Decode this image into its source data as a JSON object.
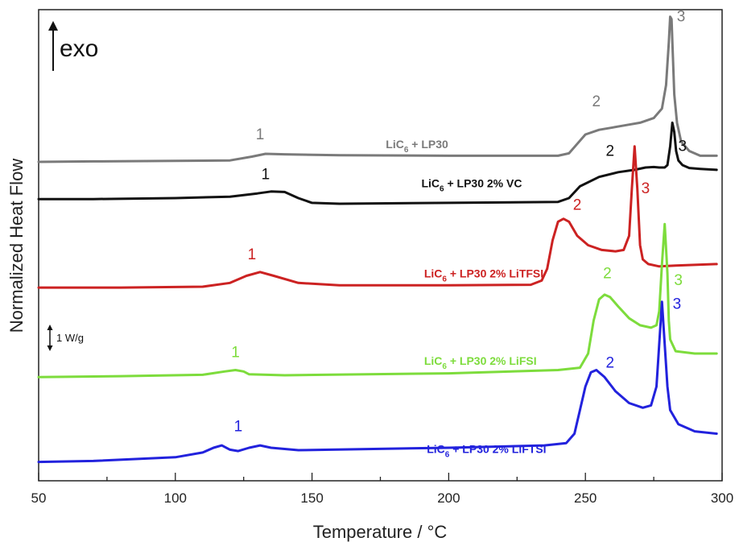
{
  "chart_data": {
    "type": "line",
    "xlabel": "Temperature / °C",
    "ylabel": "Normalized Heat Flow",
    "xlim": [
      50,
      300
    ],
    "xticks": [
      50,
      100,
      150,
      200,
      250,
      300
    ],
    "ylim": [
      0,
      1
    ],
    "y_ticks_labeled": false,
    "grid": false,
    "annotations": {
      "exo": "exo",
      "scale_bar": "1 W/g"
    },
    "series": [
      {
        "name": "LiC6 + LP30",
        "label_main": "LiC",
        "label_sub": "6",
        "label_rest": " + LP30",
        "color": "#7a7a7a",
        "x": [
          50,
          70,
          100,
          120,
          128,
          133,
          140,
          160,
          200,
          230,
          240,
          244,
          247,
          250,
          255,
          260,
          265,
          270,
          275,
          278,
          279.5,
          280.5,
          281,
          281.5,
          282,
          282.5,
          283.5,
          285,
          288,
          292,
          298
        ],
        "y": [
          0.677,
          0.678,
          0.679,
          0.68,
          0.688,
          0.694,
          0.693,
          0.691,
          0.69,
          0.69,
          0.69,
          0.695,
          0.715,
          0.735,
          0.745,
          0.75,
          0.755,
          0.76,
          0.77,
          0.79,
          0.84,
          0.93,
          0.985,
          0.98,
          0.9,
          0.82,
          0.76,
          0.72,
          0.7,
          0.69,
          0.69
        ],
        "peak_labels": [
          {
            "text": "1",
            "x": 131,
            "y": 0.725
          },
          {
            "text": "2",
            "x": 254,
            "y": 0.795
          },
          {
            "text": "3",
            "x": 285,
            "y": 0.975
          }
        ]
      },
      {
        "name": "LiC6 + LP30 2% VC",
        "label_main": "LiC",
        "label_sub": "6",
        "label_rest": " + LP30 2% VC",
        "color": "#111111",
        "x": [
          50,
          70,
          100,
          120,
          130,
          135,
          140,
          145,
          150,
          160,
          200,
          240,
          244,
          248,
          255,
          262,
          268,
          272,
          275,
          277,
          279,
          280,
          281,
          281.8,
          282.5,
          283.2,
          284,
          285.5,
          288,
          292,
          298
        ],
        "y": [
          0.598,
          0.598,
          0.6,
          0.603,
          0.61,
          0.614,
          0.613,
          0.6,
          0.59,
          0.588,
          0.59,
          0.592,
          0.6,
          0.625,
          0.645,
          0.655,
          0.66,
          0.665,
          0.666,
          0.665,
          0.665,
          0.67,
          0.71,
          0.76,
          0.74,
          0.7,
          0.68,
          0.67,
          0.664,
          0.662,
          0.66
        ],
        "peak_labels": [
          {
            "text": "1",
            "x": 133,
            "y": 0.64
          },
          {
            "text": "2",
            "x": 259,
            "y": 0.69
          },
          {
            "text": "3",
            "x": 285.5,
            "y": 0.7
          }
        ]
      },
      {
        "name": "LiC6 + LP30 2% LiTFSI",
        "label_main": "LiC",
        "label_sub": "6",
        "label_rest": " + LP30 2% LiTFSI",
        "color": "#cc2222",
        "x": [
          50,
          80,
          110,
          120,
          126,
          131,
          136,
          145,
          160,
          200,
          230,
          234,
          236,
          238,
          240,
          242,
          244,
          247,
          251,
          256,
          261,
          264,
          266,
          267,
          268,
          269,
          270,
          271,
          273,
          277,
          283,
          298
        ],
        "y": [
          0.41,
          0.41,
          0.412,
          0.42,
          0.435,
          0.443,
          0.435,
          0.42,
          0.415,
          0.415,
          0.416,
          0.425,
          0.45,
          0.51,
          0.55,
          0.556,
          0.55,
          0.52,
          0.5,
          0.49,
          0.487,
          0.49,
          0.52,
          0.62,
          0.71,
          0.62,
          0.5,
          0.47,
          0.46,
          0.455,
          0.457,
          0.46
        ],
        "peak_labels": [
          {
            "text": "1",
            "x": 128,
            "y": 0.47
          },
          {
            "text": "2",
            "x": 247,
            "y": 0.575
          },
          {
            "text": "3",
            "x": 272,
            "y": 0.61
          }
        ]
      },
      {
        "name": "LiC6 + LP30 2% LiFSI",
        "label_main": "LiC",
        "label_sub": "6",
        "label_rest": " + LP30 2% LiFSI",
        "color": "#7ddc3c",
        "x": [
          50,
          80,
          110,
          118,
          122,
          125,
          127,
          140,
          200,
          240,
          248,
          251,
          253,
          255,
          257,
          259,
          262,
          266,
          270,
          274,
          276,
          277,
          278,
          279,
          280,
          280.5,
          281,
          283,
          290,
          298
        ],
        "y": [
          0.22,
          0.222,
          0.225,
          0.232,
          0.235,
          0.232,
          0.226,
          0.224,
          0.228,
          0.235,
          0.24,
          0.27,
          0.34,
          0.385,
          0.395,
          0.39,
          0.37,
          0.345,
          0.33,
          0.325,
          0.33,
          0.36,
          0.46,
          0.545,
          0.44,
          0.34,
          0.3,
          0.275,
          0.27,
          0.27
        ],
        "peak_labels": [
          {
            "text": "1",
            "x": 122,
            "y": 0.262
          },
          {
            "text": "2",
            "x": 258,
            "y": 0.43
          },
          {
            "text": "3",
            "x": 284,
            "y": 0.415
          }
        ]
      },
      {
        "name": "LiC6 + LP30 2% LiFTSI",
        "label_main": "LiC",
        "label_sub": "6",
        "label_rest": " + LP30 2% LiFTSI",
        "color": "#2222dd",
        "x": [
          50,
          70,
          100,
          110,
          114,
          117,
          120,
          123,
          127,
          131,
          135,
          145,
          200,
          235,
          243,
          246,
          248,
          250,
          252,
          254,
          257,
          261,
          266,
          271,
          274,
          276,
          277,
          278,
          279,
          280,
          281,
          284,
          290,
          298
        ],
        "y": [
          0.04,
          0.042,
          0.05,
          0.06,
          0.07,
          0.075,
          0.066,
          0.063,
          0.07,
          0.075,
          0.07,
          0.065,
          0.07,
          0.075,
          0.08,
          0.1,
          0.15,
          0.2,
          0.23,
          0.235,
          0.22,
          0.19,
          0.165,
          0.155,
          0.16,
          0.2,
          0.29,
          0.38,
          0.29,
          0.2,
          0.15,
          0.12,
          0.105,
          0.1
        ],
        "peak_labels": [
          {
            "text": "1",
            "x": 123,
            "y": 0.105
          },
          {
            "text": "2",
            "x": 259,
            "y": 0.24
          },
          {
            "text": "3",
            "x": 283.5,
            "y": 0.365
          }
        ]
      }
    ],
    "series_label_positions": [
      {
        "x": 177,
        "y": 0.706
      },
      {
        "x": 190,
        "y": 0.623
      },
      {
        "x": 191,
        "y": 0.432
      },
      {
        "x": 191,
        "y": 0.246
      },
      {
        "x": 192,
        "y": 0.059
      }
    ]
  }
}
